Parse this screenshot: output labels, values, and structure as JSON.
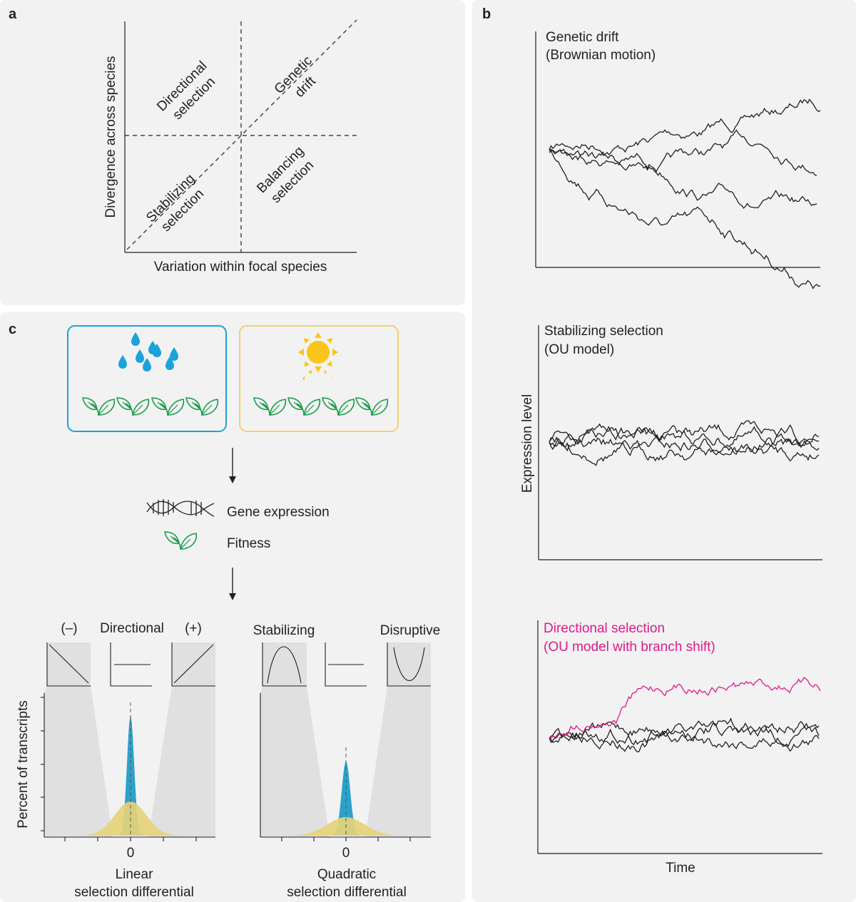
{
  "panel_a": {
    "label": "a",
    "x_axis_label": "Variation within focal species",
    "y_axis_label": "Divergence across species",
    "quadrants": {
      "directional_1": "Directional",
      "directional_2": "selection",
      "drift_1": "Genetic",
      "drift_2": "drift",
      "stabilizing_1": "Stabilizing",
      "stabilizing_2": "selection",
      "balancing_1": "Balancing",
      "balancing_2": "selection"
    }
  },
  "panel_b": {
    "label": "b",
    "y_axis_label": "Expression level",
    "x_axis_label": "Time",
    "plots": [
      {
        "title_1": "Genetic drift",
        "title_2": "(Brownian motion)"
      },
      {
        "title_1": "Stabilizing selection",
        "title_2": "(OU model)"
      },
      {
        "title_1": "Directional selection",
        "title_2": "(OU model with branch shift)",
        "color": "#e0198c"
      }
    ]
  },
  "panel_c": {
    "label": "c",
    "environments": [
      {
        "name": "wet",
        "color": "#1ba3d9"
      },
      {
        "name": "dry",
        "color": "#f2d16b"
      }
    ],
    "gene_expression_label": "Gene expression",
    "fitness_label": "Fitness",
    "linear": {
      "neg_label": "(–)",
      "mid_label": "Directional",
      "pos_label": "(+)",
      "tick_zero": "0",
      "xlabel_1": "Linear",
      "xlabel_2": "selection differential"
    },
    "quadratic": {
      "left_label": "Stabilizing",
      "right_label": "Disruptive",
      "tick_zero": "0",
      "xlabel_1": "Quadratic",
      "xlabel_2": "selection differential"
    },
    "y_axis_label": "Percent of transcripts",
    "colors": {
      "blue": "#1a9bc9",
      "yellow": "#e6d27a",
      "shade": "#e0e0e0",
      "leaf": "#1a9c4a"
    }
  }
}
